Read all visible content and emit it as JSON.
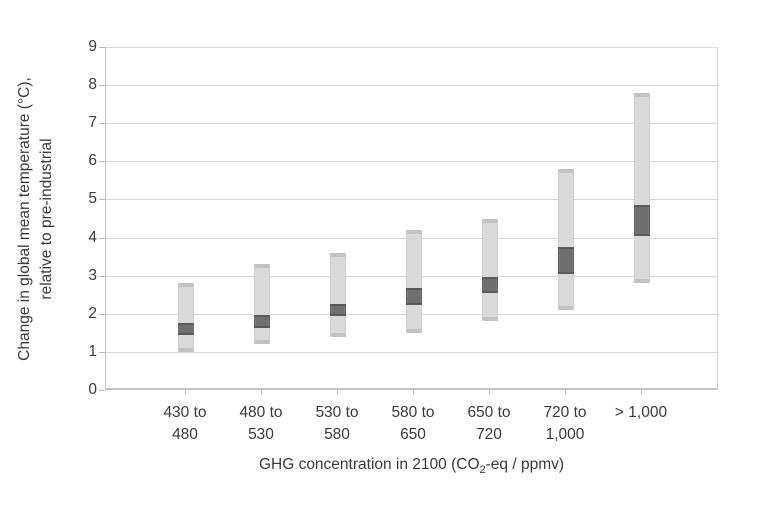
{
  "chart_data": {
    "type": "bar",
    "subtype": "floating-range-bars",
    "title": "",
    "xlabel": "GHG concentration in 2100 (CO2-eq / ppmv)",
    "xlabel_parts": {
      "pre": "GHG concentration in 2100 (CO",
      "sub": "2",
      "post": "-eq / ppmv)"
    },
    "ylabel": "Change in global mean temperature (°C), relative to pre-industrial",
    "ylabel_lines": [
      "Change in global mean temperature (°C),",
      "relative to pre-industrial"
    ],
    "categories": [
      "430 to 480",
      "480 to 530",
      "530 to 580",
      "580 to 650",
      "650 to 720",
      "720 to 1,000",
      "> 1,000"
    ],
    "category_display_lines": [
      [
        "430 to",
        "480"
      ],
      [
        "480 to",
        "530"
      ],
      [
        "530 to",
        "580"
      ],
      [
        "580 to",
        "650"
      ],
      [
        "650 to",
        "720"
      ],
      [
        "720 to",
        "1,000"
      ],
      [
        "> 1,000"
      ]
    ],
    "series": [
      {
        "name": "light-gray-full-range",
        "ranges": [
          [
            1.0,
            2.8
          ],
          [
            1.2,
            3.3
          ],
          [
            1.4,
            3.6
          ],
          [
            1.5,
            4.2
          ],
          [
            1.8,
            4.5
          ],
          [
            2.1,
            5.8
          ],
          [
            2.8,
            7.8
          ]
        ]
      },
      {
        "name": "dark-gray-central-range",
        "ranges": [
          [
            1.5,
            1.7
          ],
          [
            1.7,
            1.9
          ],
          [
            2.0,
            2.2
          ],
          [
            2.3,
            2.6
          ],
          [
            2.6,
            2.9
          ],
          [
            3.1,
            3.7
          ],
          [
            4.1,
            4.8
          ]
        ]
      }
    ],
    "ylim": [
      0,
      9
    ],
    "yticks": [
      0,
      1,
      2,
      3,
      4,
      5,
      6,
      7,
      8,
      9
    ],
    "grid": true,
    "legend": "none",
    "colors": {
      "full_range": "#d9d9d9",
      "full_range_cap": "#c2c2c2",
      "central_range": "#6f6f6f",
      "central_range_cap": "#5a5a5a",
      "gridline": "#d9d9d9",
      "axis": "#b9b9b9",
      "text": "#3a3a3a",
      "background": "#ffffff"
    }
  }
}
